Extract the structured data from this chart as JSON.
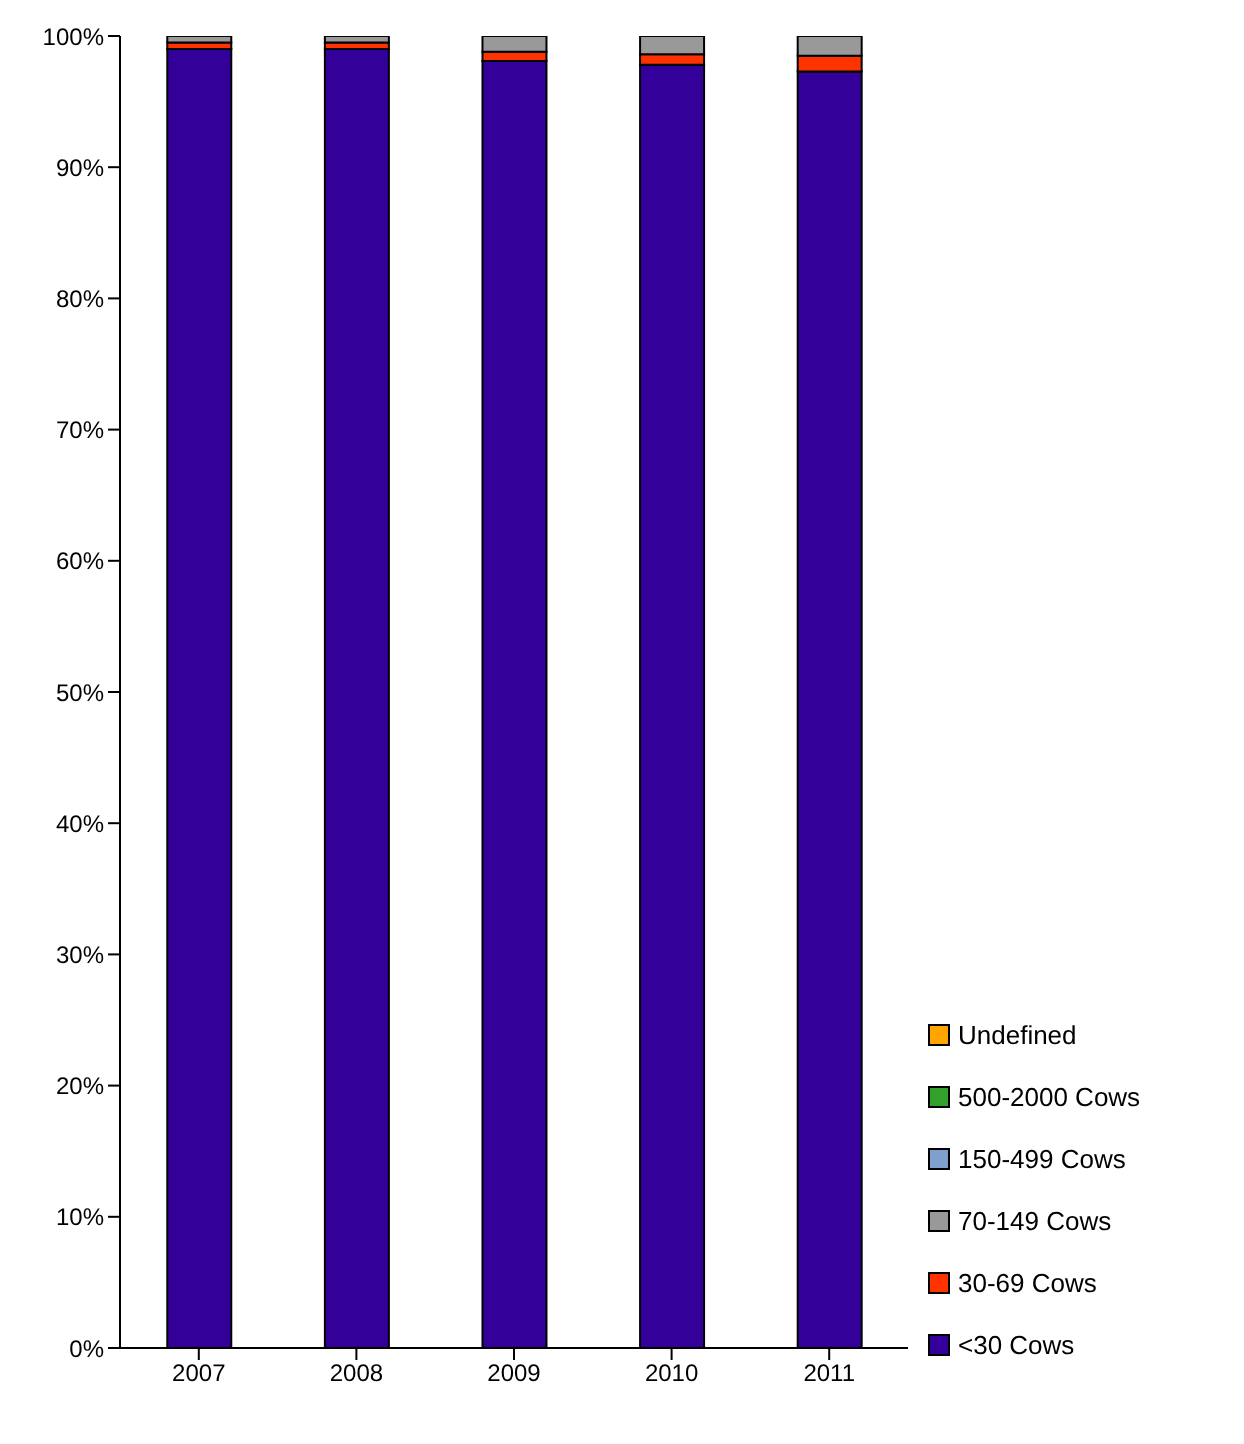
{
  "chart_data": {
    "type": "bar",
    "stacked": true,
    "categories": [
      "2007",
      "2008",
      "2009",
      "2010",
      "2011"
    ],
    "series": [
      {
        "name": "<30 Cows",
        "color": "#330099",
        "values": [
          99.0,
          99.0,
          98.1,
          97.8,
          97.3
        ]
      },
      {
        "name": "30-69 Cows",
        "color": "#ff3300",
        "values": [
          0.5,
          0.5,
          0.7,
          0.8,
          1.2
        ]
      },
      {
        "name": "70-149 Cows",
        "color": "#999999",
        "values": [
          0.5,
          0.5,
          1.2,
          1.4,
          1.5
        ]
      },
      {
        "name": "150-499 Cows",
        "color": "#7f9fcf",
        "values": [
          0,
          0,
          0,
          0,
          0
        ]
      },
      {
        "name": "500-2000 Cows",
        "color": "#33a02c",
        "values": [
          0,
          0,
          0,
          0,
          0
        ]
      },
      {
        "name": "Undefined",
        "color": "#ffa500",
        "values": [
          0,
          0,
          0,
          0,
          0
        ]
      }
    ],
    "ylim": [
      0,
      100
    ],
    "yticks": [
      {
        "value": 0,
        "label": "0%"
      },
      {
        "value": 10,
        "label": "10%"
      },
      {
        "value": 20,
        "label": "20%"
      },
      {
        "value": 30,
        "label": "30%"
      },
      {
        "value": 40,
        "label": "40%"
      },
      {
        "value": 50,
        "label": "50%"
      },
      {
        "value": 60,
        "label": "60%"
      },
      {
        "value": 70,
        "label": "70%"
      },
      {
        "value": 80,
        "label": "80%"
      },
      {
        "value": 90,
        "label": "90%"
      },
      {
        "value": 100,
        "label": "100%"
      }
    ],
    "legend": "bottom right",
    "grid": false
  }
}
